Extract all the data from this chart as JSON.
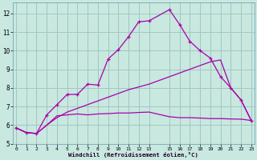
{
  "xlabel": "Windchill (Refroidissement éolien,°C)",
  "xlim": [
    -0.3,
    23.3
  ],
  "ylim": [
    5.0,
    12.6
  ],
  "yticks": [
    5,
    6,
    7,
    8,
    9,
    10,
    11,
    12
  ],
  "xticks": [
    0,
    1,
    2,
    3,
    4,
    5,
    6,
    7,
    8,
    9,
    10,
    11,
    12,
    13,
    15,
    16,
    17,
    18,
    19,
    20,
    21,
    22,
    23
  ],
  "xtick_labels": [
    "0",
    "1",
    "2",
    "3",
    "4",
    "5",
    "6",
    "7",
    "8",
    "9",
    "10",
    "11",
    "12",
    "13",
    "15",
    "16",
    "17",
    "18",
    "19",
    "20",
    "21",
    "22",
    "23"
  ],
  "bg_color": "#c8e8e0",
  "grid_color": "#a0c8c0",
  "line_color": "#aa00aa",
  "line1_x": [
    0,
    1,
    2,
    3,
    4,
    5,
    6,
    7,
    8,
    9,
    10,
    11,
    12,
    13,
    15,
    16,
    17,
    18,
    19,
    20,
    21,
    22,
    23
  ],
  "line1_y": [
    5.85,
    5.6,
    5.55,
    6.55,
    7.1,
    7.65,
    7.65,
    8.2,
    8.15,
    9.55,
    10.05,
    10.75,
    11.55,
    11.6,
    12.2,
    11.4,
    10.5,
    10.0,
    9.6,
    8.6,
    8.0,
    7.35,
    6.25
  ],
  "line2_x": [
    0,
    1,
    2,
    3,
    4,
    5,
    6,
    7,
    8,
    9,
    10,
    11,
    12,
    13,
    15,
    16,
    17,
    18,
    19,
    20,
    21,
    22,
    23
  ],
  "line2_y": [
    5.85,
    5.6,
    5.55,
    6.0,
    6.4,
    6.7,
    6.9,
    7.1,
    7.3,
    7.5,
    7.7,
    7.9,
    8.05,
    8.2,
    8.6,
    8.8,
    9.0,
    9.2,
    9.4,
    9.5,
    8.0,
    7.35,
    6.25
  ],
  "line3_x": [
    0,
    1,
    2,
    3,
    4,
    5,
    6,
    7,
    8,
    9,
    10,
    11,
    12,
    13,
    15,
    16,
    17,
    18,
    19,
    20,
    21,
    22,
    23
  ],
  "line3_y": [
    5.85,
    5.6,
    5.55,
    6.0,
    6.5,
    6.55,
    6.6,
    6.55,
    6.6,
    6.62,
    6.65,
    6.65,
    6.68,
    6.7,
    6.45,
    6.4,
    6.4,
    6.38,
    6.35,
    6.35,
    6.33,
    6.32,
    6.25
  ]
}
